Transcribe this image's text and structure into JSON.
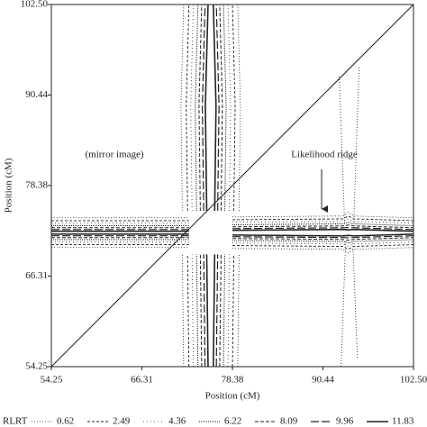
{
  "chart_data": {
    "type": "contour",
    "x_label": "Position (cM)",
    "y_label": "Position (cM)",
    "xlim": [
      54.25,
      102.5
    ],
    "ylim": [
      54.25,
      102.5
    ],
    "xticks": [
      54.25,
      66.31,
      78.38,
      90.44,
      {
        "value": 102.5,
        "label": "102.50"
      }
    ],
    "yticks": [
      54.25,
      66.31,
      78.38,
      90.44,
      {
        "value": 102.5,
        "label": "102.50"
      }
    ],
    "legend_title": "RLRT",
    "levels": [
      0.62,
      2.49,
      4.36,
      6.22,
      8.09,
      9.96,
      11.83
    ],
    "color": "#222222",
    "annotations": [
      "(mirror image)",
      "Likelihood ridge"
    ]
  }
}
